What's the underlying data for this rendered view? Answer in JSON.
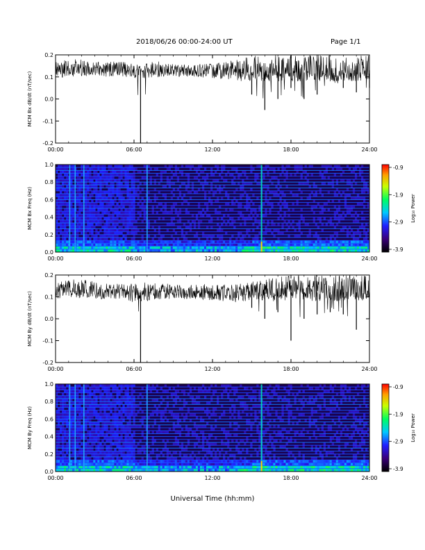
{
  "header": {
    "title": "2018/06/26  00:00-24:00 UT",
    "page": "Page 1/1"
  },
  "chart_data": [
    {
      "type": "line",
      "ylabel": "MCM Bx dB/dt (nT/sec)",
      "ylim": [
        -0.2,
        0.2
      ],
      "yticks": [
        "0.2",
        "0.1",
        "0.0",
        "-0.1",
        "-0.2"
      ],
      "xlim": [
        "00:00",
        "24:00"
      ],
      "xticks": [
        "00:00",
        "06:00",
        "12:00",
        "18:00",
        "24:00"
      ],
      "series": [
        {
          "x": [
            "00:00",
            "01:00",
            "02:00",
            "03:00",
            "04:00",
            "05:00",
            "06:00",
            "06:30",
            "07:00",
            "08:00",
            "09:00",
            "10:00",
            "11:00",
            "12:00",
            "13:00",
            "14:00",
            "15:00",
            "16:00",
            "17:00",
            "18:00",
            "19:00",
            "20:00",
            "21:00",
            "22:00",
            "23:00",
            "24:00"
          ],
          "values": [
            0.14,
            0.14,
            0.14,
            0.14,
            0.13,
            0.14,
            0.13,
            0.13,
            0.13,
            0.13,
            0.13,
            0.13,
            0.13,
            0.13,
            0.13,
            0.12,
            0.12,
            0.12,
            0.12,
            0.12,
            0.12,
            0.12,
            0.12,
            0.12,
            0.12,
            0.13
          ],
          "min": [
            0.1,
            0.09,
            0.1,
            0.1,
            0.1,
            0.1,
            0.08,
            -0.2,
            0.09,
            0.1,
            0.1,
            0.1,
            0.1,
            0.09,
            0.09,
            0.07,
            0.02,
            -0.05,
            0.0,
            0.05,
            0.0,
            0.02,
            0.06,
            0.05,
            0.03,
            0.05
          ],
          "max": [
            0.17,
            0.18,
            0.18,
            0.17,
            0.17,
            0.17,
            0.16,
            0.16,
            0.17,
            0.17,
            0.16,
            0.16,
            0.16,
            0.16,
            0.17,
            0.18,
            0.2,
            0.2,
            0.2,
            0.2,
            0.2,
            0.2,
            0.2,
            0.2,
            0.2,
            0.2
          ]
        }
      ]
    },
    {
      "type": "heatmap",
      "ylabel": "MCM Bx Freq (Hz)",
      "ylim": [
        0.0,
        1.0
      ],
      "yticks": [
        "1.0",
        "0.8",
        "0.6",
        "0.4",
        "0.2",
        "0.0"
      ],
      "xlim": [
        "00:00",
        "24:00"
      ],
      "xticks": [
        "00:00",
        "06:00",
        "12:00",
        "18:00",
        "24:00"
      ],
      "colorbar": {
        "label": "Log₁₀ Power",
        "range": [
          -3.9,
          -0.9
        ],
        "ticks": [
          "-0.9",
          "-1.9",
          "-2.9",
          "-3.9"
        ]
      },
      "harmonic_freqs_hz": [
        0.033,
        0.067,
        0.1,
        0.133,
        0.167,
        0.2,
        0.233,
        0.267,
        0.3,
        0.333,
        0.367,
        0.4,
        0.433,
        0.467,
        0.5,
        0.533,
        0.567,
        0.6,
        0.633,
        0.667,
        0.7,
        0.733,
        0.767,
        0.8,
        0.833,
        0.867,
        0.9,
        0.933,
        0.967
      ],
      "vertical_features_ut": [
        "01:05",
        "01:30",
        "02:10",
        "07:00",
        "15:45"
      ]
    },
    {
      "type": "line",
      "ylabel": "MCM By dB/dt (nT/sec)",
      "ylim": [
        -0.2,
        0.2
      ],
      "yticks": [
        "0.2",
        "0.1",
        "0.0",
        "-0.1",
        "-0.2"
      ],
      "xlim": [
        "00:00",
        "24:00"
      ],
      "xticks": [
        "00:00",
        "06:00",
        "12:00",
        "18:00",
        "24:00"
      ],
      "series": [
        {
          "x": [
            "00:00",
            "01:00",
            "02:00",
            "03:00",
            "04:00",
            "05:00",
            "06:00",
            "06:30",
            "07:00",
            "08:00",
            "09:00",
            "10:00",
            "11:00",
            "12:00",
            "13:00",
            "14:00",
            "15:00",
            "16:00",
            "17:00",
            "18:00",
            "19:00",
            "20:00",
            "21:00",
            "22:00",
            "23:00",
            "24:00"
          ],
          "values": [
            0.13,
            0.14,
            0.13,
            0.13,
            0.13,
            0.13,
            0.12,
            0.12,
            0.12,
            0.13,
            0.12,
            0.12,
            0.12,
            0.12,
            0.12,
            0.12,
            0.12,
            0.12,
            0.12,
            0.12,
            0.12,
            0.12,
            0.12,
            0.12,
            0.12,
            0.12
          ],
          "min": [
            0.09,
            0.1,
            0.09,
            0.09,
            0.09,
            0.09,
            0.07,
            -0.2,
            0.08,
            0.09,
            0.09,
            0.09,
            0.09,
            0.08,
            0.08,
            0.06,
            0.05,
            0.0,
            0.03,
            -0.1,
            0.0,
            0.02,
            0.03,
            0.02,
            -0.05,
            0.0
          ],
          "max": [
            0.17,
            0.18,
            0.18,
            0.17,
            0.16,
            0.16,
            0.16,
            0.16,
            0.17,
            0.16,
            0.16,
            0.16,
            0.16,
            0.16,
            0.16,
            0.16,
            0.17,
            0.18,
            0.19,
            0.2,
            0.2,
            0.2,
            0.2,
            0.2,
            0.2,
            0.2
          ]
        }
      ]
    },
    {
      "type": "heatmap",
      "ylabel": "MCM By Freq (Hz)",
      "ylim": [
        0.0,
        1.0
      ],
      "yticks": [
        "1.0",
        "0.8",
        "0.6",
        "0.4",
        "0.2",
        "0.0"
      ],
      "xlim": [
        "00:00",
        "24:00"
      ],
      "xticks": [
        "00:00",
        "06:00",
        "12:00",
        "18:00",
        "24:00"
      ],
      "colorbar": {
        "label": "Log₁₀ Power",
        "range": [
          -3.9,
          -0.9
        ],
        "ticks": [
          "-0.9",
          "-1.9",
          "-2.9",
          "-3.9"
        ]
      },
      "harmonic_freqs_hz": [
        0.033,
        0.067,
        0.1,
        0.133,
        0.167,
        0.2,
        0.233,
        0.267,
        0.3,
        0.333,
        0.367,
        0.4,
        0.433,
        0.467,
        0.5,
        0.533,
        0.567,
        0.6,
        0.633,
        0.667,
        0.7,
        0.733,
        0.767,
        0.8,
        0.833,
        0.867,
        0.9,
        0.933,
        0.967
      ],
      "vertical_features_ut": [
        "01:05",
        "01:30",
        "02:10",
        "07:00",
        "15:45"
      ]
    }
  ],
  "xlabel": "Universal Time (hh:mm)"
}
